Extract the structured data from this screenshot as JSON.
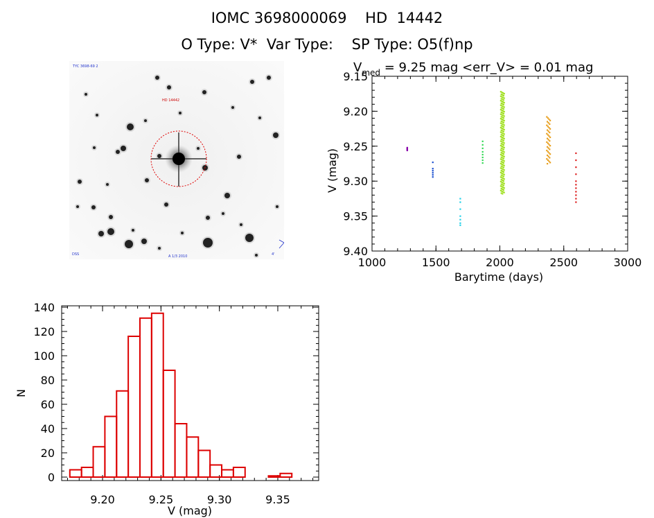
{
  "header": {
    "line1": "IOMC 3698000069    HD  14442",
    "line2": "O Type: V*  Var Type:    SP Type: O5(f)np"
  },
  "sky_image": {
    "label_topleft": "TYC 3698-69 2",
    "label_target": "HD 14442",
    "label_bottom": "A 1/3 2010",
    "label_bottomleft": "DSS",
    "label_bottomright": "4'",
    "colors": {
      "background": "#f7f7f7",
      "star": "#111111",
      "circle": "#e00000",
      "label_red": "#cc0000",
      "label_blue": "#2233cc"
    }
  },
  "chart_data": [
    {
      "type": "scatter",
      "title_prefix": "V",
      "title_subscript": "med",
      "title_rest": " = 9.25 mag <err_V> = 0.01 mag",
      "xlabel": "Barytime (days)",
      "ylabel": "V (mag)",
      "xlim": [
        1000,
        3000
      ],
      "ylim": [
        9.4,
        9.15
      ],
      "y_inverted": true,
      "xticks": [
        "1000",
        "1500",
        "2000",
        "2500",
        "3000"
      ],
      "yticks": [
        "9.15",
        "9.20",
        "9.25",
        "9.30",
        "9.35",
        "9.40"
      ],
      "series": [
        {
          "color": "#8800aa",
          "x": 1275,
          "values": [
            9.252,
            9.253,
            9.254,
            9.255,
            9.256
          ]
        },
        {
          "color": "#1a4fd0",
          "x": 1475,
          "values": [
            9.273,
            9.282,
            9.285,
            9.288,
            9.291,
            9.294
          ]
        },
        {
          "color": "#22d0e8",
          "x": 1690,
          "values": [
            9.325,
            9.33,
            9.34,
            9.35,
            9.355,
            9.36,
            9.363
          ]
        },
        {
          "color": "#33d955",
          "x": 1865,
          "values": [
            9.243,
            9.248,
            9.253,
            9.258,
            9.262,
            9.266,
            9.27,
            9.274
          ]
        },
        {
          "color": "#a0e020",
          "x": 2020,
          "values_range": [
            9.172,
            9.318
          ],
          "count": 160
        },
        {
          "color": "#e8a020",
          "x": 2380,
          "values_range": [
            9.208,
            9.275
          ],
          "count": 40
        },
        {
          "color": "#dd2020",
          "x": 2595,
          "values": [
            9.26,
            9.27,
            9.28,
            9.29,
            9.3,
            9.305,
            9.31,
            9.315,
            9.32,
            9.325,
            9.33
          ]
        }
      ]
    },
    {
      "type": "bar",
      "title": "",
      "xlabel": "V (mag)",
      "ylabel": "N",
      "xlim": [
        9.165,
        9.385
      ],
      "ylim": [
        0,
        140
      ],
      "xticks": [
        "9.20",
        "9.25",
        "9.30",
        "9.35"
      ],
      "yticks": [
        "0",
        "20",
        "40",
        "60",
        "80",
        "100",
        "120",
        "140"
      ],
      "bar_color": "#dd0000",
      "bin_edges": [
        9.172,
        9.182,
        9.192,
        9.202,
        9.212,
        9.222,
        9.232,
        9.242,
        9.252,
        9.262,
        9.272,
        9.282,
        9.292,
        9.302,
        9.312,
        9.322,
        9.332,
        9.342,
        9.352,
        9.362,
        9.372
      ],
      "values": [
        6,
        8,
        25,
        50,
        71,
        116,
        131,
        135,
        88,
        44,
        33,
        22,
        10,
        6,
        8,
        0,
        0,
        1,
        3,
        0
      ]
    }
  ]
}
